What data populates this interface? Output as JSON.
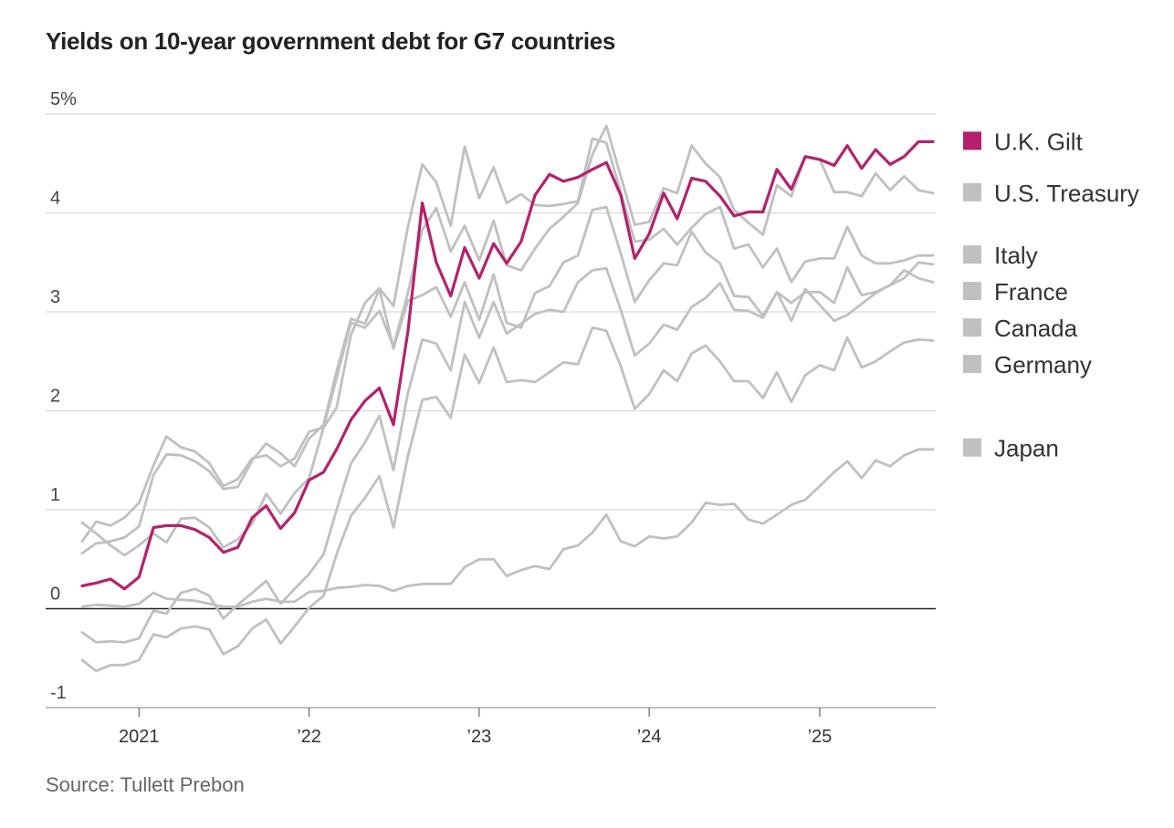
{
  "title": "Yields on 10-year government debt for G7 countries",
  "source": "Source: Tullett Prebon",
  "colors": {
    "highlight": "#b5206e",
    "others": "#c0c0c0",
    "grid": "#d9d9d9",
    "zero_line": "#222222"
  },
  "chart_data": {
    "type": "line",
    "title": "Yields on 10-year government debt for G7 countries",
    "xlabel": "",
    "ylabel": "",
    "ylim": [
      -1,
      5
    ],
    "xlim": [
      "2020-09-01",
      "2025-09-01"
    ],
    "y_ticks": [
      {
        "value": 5,
        "label": "5%"
      },
      {
        "value": 4,
        "label": "4"
      },
      {
        "value": 3,
        "label": "3"
      },
      {
        "value": 2,
        "label": "2"
      },
      {
        "value": 1,
        "label": "1"
      },
      {
        "value": 0,
        "label": "0"
      },
      {
        "value": -1,
        "label": "-1"
      }
    ],
    "x_ticks": [
      {
        "date": "2021-01-01",
        "label": "2021"
      },
      {
        "date": "2022-01-01",
        "label": "’22"
      },
      {
        "date": "2023-01-01",
        "label": "’23"
      },
      {
        "date": "2024-01-01",
        "label": "’24"
      },
      {
        "date": "2025-01-01",
        "label": "’25"
      }
    ],
    "grid": true,
    "legend": "right",
    "x_dates": [
      "2020-09",
      "2020-10",
      "2020-11",
      "2020-12",
      "2021-01",
      "2021-02",
      "2021-03",
      "2021-04",
      "2021-05",
      "2021-06",
      "2021-07",
      "2021-08",
      "2021-09",
      "2021-10",
      "2021-11",
      "2021-12",
      "2022-01",
      "2022-02",
      "2022-03",
      "2022-04",
      "2022-05",
      "2022-06",
      "2022-07",
      "2022-08",
      "2022-09",
      "2022-10",
      "2022-11",
      "2022-12",
      "2023-01",
      "2023-02",
      "2023-03",
      "2023-04",
      "2023-05",
      "2023-06",
      "2023-07",
      "2023-08",
      "2023-09",
      "2023-10",
      "2023-11",
      "2023-12",
      "2024-01",
      "2024-02",
      "2024-03",
      "2024-04",
      "2024-05",
      "2024-06",
      "2024-07",
      "2024-08",
      "2024-09",
      "2024-10",
      "2024-11",
      "2024-12",
      "2025-01",
      "2025-02",
      "2025-03",
      "2025-04",
      "2025-05",
      "2025-06",
      "2025-07",
      "2025-08",
      "2025-09"
    ],
    "series": [
      {
        "name": "U.S. Treasury",
        "highlight": false,
        "label_value": 4.2,
        "values": [
          0.68,
          0.88,
          0.84,
          0.92,
          1.07,
          1.45,
          1.74,
          1.63,
          1.59,
          1.47,
          1.24,
          1.31,
          1.52,
          1.55,
          1.44,
          1.52,
          1.79,
          1.83,
          2.33,
          2.89,
          2.84,
          3.01,
          2.65,
          3.19,
          3.83,
          4.05,
          3.61,
          3.87,
          3.52,
          3.92,
          3.47,
          3.42,
          3.64,
          3.84,
          3.96,
          4.1,
          4.59,
          4.88,
          4.37,
          3.88,
          3.91,
          4.25,
          4.2,
          4.68,
          4.5,
          4.36,
          4.03,
          3.9,
          3.78,
          4.28,
          4.17,
          4.57,
          4.54,
          4.21,
          4.21,
          4.17,
          4.4,
          4.23,
          4.37,
          4.23,
          4.2
        ]
      },
      {
        "name": "U.K. Gilt",
        "highlight": true,
        "label_value": 4.72,
        "values": [
          0.23,
          0.26,
          0.3,
          0.2,
          0.32,
          0.82,
          0.84,
          0.84,
          0.8,
          0.72,
          0.57,
          0.62,
          0.92,
          1.04,
          0.81,
          0.97,
          1.3,
          1.38,
          1.61,
          1.91,
          2.1,
          2.23,
          1.86,
          2.8,
          4.1,
          3.5,
          3.16,
          3.65,
          3.34,
          3.69,
          3.49,
          3.71,
          4.18,
          4.39,
          4.32,
          4.36,
          4.44,
          4.51,
          4.18,
          3.54,
          3.79,
          4.2,
          3.94,
          4.35,
          4.32,
          4.17,
          3.97,
          4.01,
          4.01,
          4.44,
          4.24,
          4.57,
          4.54,
          4.48,
          4.68,
          4.45,
          4.64,
          4.49,
          4.57,
          4.72,
          4.72
        ]
      },
      {
        "name": "Italy",
        "highlight": false,
        "label_value": 3.57,
        "values": [
          0.87,
          0.76,
          0.64,
          0.54,
          0.64,
          0.76,
          0.67,
          0.91,
          0.92,
          0.82,
          0.62,
          0.7,
          0.86,
          1.16,
          0.96,
          1.17,
          1.32,
          1.83,
          2.03,
          2.77,
          3.09,
          3.24,
          3.06,
          3.86,
          4.49,
          4.31,
          3.87,
          4.67,
          4.15,
          4.46,
          4.1,
          4.19,
          4.08,
          4.07,
          4.09,
          4.12,
          4.75,
          4.71,
          4.21,
          3.71,
          3.73,
          3.84,
          3.68,
          3.85,
          3.99,
          4.06,
          3.64,
          3.68,
          3.45,
          3.64,
          3.3,
          3.51,
          3.54,
          3.54,
          3.86,
          3.57,
          3.49,
          3.49,
          3.52,
          3.57,
          3.57
        ]
      },
      {
        "name": "France",
        "highlight": false,
        "label_value": 3.5,
        "values": [
          -0.24,
          -0.34,
          -0.33,
          -0.34,
          -0.3,
          -0.02,
          -0.05,
          0.16,
          0.2,
          0.13,
          -0.1,
          0.04,
          0.16,
          0.28,
          0.05,
          0.2,
          0.35,
          0.55,
          1.0,
          1.47,
          1.68,
          1.95,
          1.4,
          2.18,
          2.72,
          2.68,
          2.41,
          3.1,
          2.74,
          3.1,
          2.78,
          2.88,
          2.98,
          3.02,
          3.0,
          3.3,
          3.42,
          3.44,
          3.02,
          2.56,
          2.68,
          2.87,
          2.82,
          3.05,
          3.14,
          3.29,
          3.02,
          3.01,
          2.94,
          3.2,
          3.09,
          3.2,
          3.2,
          3.09,
          3.45,
          3.17,
          3.2,
          3.27,
          3.34,
          3.5,
          3.48
        ]
      },
      {
        "name": "Canada",
        "highlight": false,
        "label_value": 3.3,
        "values": [
          0.56,
          0.66,
          0.68,
          0.72,
          0.83,
          1.35,
          1.56,
          1.55,
          1.49,
          1.39,
          1.21,
          1.23,
          1.5,
          1.67,
          1.57,
          1.44,
          1.72,
          1.86,
          2.4,
          2.93,
          2.88,
          3.23,
          2.63,
          3.11,
          3.17,
          3.25,
          2.95,
          3.3,
          2.92,
          3.38,
          2.89,
          2.84,
          3.19,
          3.26,
          3.5,
          3.57,
          4.03,
          4.06,
          3.59,
          3.1,
          3.32,
          3.49,
          3.47,
          3.81,
          3.6,
          3.49,
          3.16,
          3.15,
          2.96,
          3.2,
          2.91,
          3.23,
          3.07,
          2.91,
          2.97,
          3.08,
          3.19,
          3.27,
          3.42,
          3.34,
          3.3
        ]
      },
      {
        "name": "Germany",
        "highlight": false,
        "label_value": 2.72,
        "values": [
          -0.52,
          -0.63,
          -0.57,
          -0.57,
          -0.52,
          -0.26,
          -0.29,
          -0.2,
          -0.18,
          -0.21,
          -0.46,
          -0.38,
          -0.2,
          -0.11,
          -0.35,
          -0.18,
          0.01,
          0.13,
          0.55,
          0.94,
          1.12,
          1.34,
          0.82,
          1.54,
          2.11,
          2.14,
          1.93,
          2.57,
          2.28,
          2.64,
          2.29,
          2.31,
          2.29,
          2.39,
          2.49,
          2.47,
          2.84,
          2.81,
          2.45,
          2.02,
          2.17,
          2.41,
          2.3,
          2.58,
          2.66,
          2.5,
          2.3,
          2.3,
          2.13,
          2.39,
          2.09,
          2.36,
          2.46,
          2.41,
          2.74,
          2.44,
          2.5,
          2.6,
          2.69,
          2.72,
          2.71
        ]
      },
      {
        "name": "Japan",
        "highlight": false,
        "label_value": 1.62,
        "values": [
          0.02,
          0.04,
          0.03,
          0.02,
          0.05,
          0.16,
          0.1,
          0.09,
          0.08,
          0.05,
          0.02,
          0.02,
          0.07,
          0.1,
          0.07,
          0.07,
          0.17,
          0.18,
          0.21,
          0.22,
          0.24,
          0.23,
          0.18,
          0.23,
          0.25,
          0.25,
          0.25,
          0.42,
          0.5,
          0.5,
          0.33,
          0.39,
          0.43,
          0.4,
          0.6,
          0.64,
          0.77,
          0.95,
          0.68,
          0.63,
          0.73,
          0.71,
          0.73,
          0.87,
          1.07,
          1.05,
          1.06,
          0.9,
          0.86,
          0.95,
          1.05,
          1.1,
          1.24,
          1.38,
          1.49,
          1.32,
          1.5,
          1.44,
          1.55,
          1.61,
          1.61
        ]
      }
    ]
  }
}
